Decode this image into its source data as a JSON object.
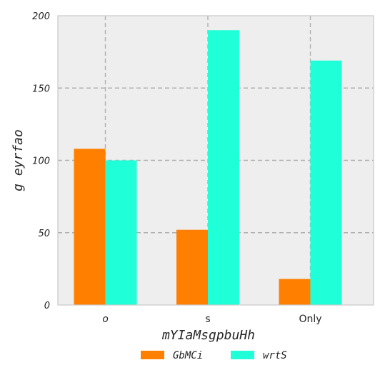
{
  "chart_data": {
    "type": "bar",
    "categories": [
      "o",
      "s",
      "Only"
    ],
    "category_italic": [
      true,
      false,
      false
    ],
    "series": [
      {
        "name": "GbMCi",
        "values": [
          108,
          52,
          18
        ],
        "color": "#ff8000"
      },
      {
        "name": "wrtS",
        "values": [
          100,
          190,
          169
        ],
        "color": "#1fffd8"
      }
    ],
    "title": "",
    "xlabel": "mYIaMsgpbuHh",
    "ylabel": "g eyrfao",
    "ylim": [
      0,
      200
    ],
    "yticks": [
      0,
      50,
      100,
      150,
      200
    ],
    "grid": true,
    "legend": "bottom-center",
    "plot_background": "#eeeeee",
    "grid_color": "#b0b0b0"
  }
}
